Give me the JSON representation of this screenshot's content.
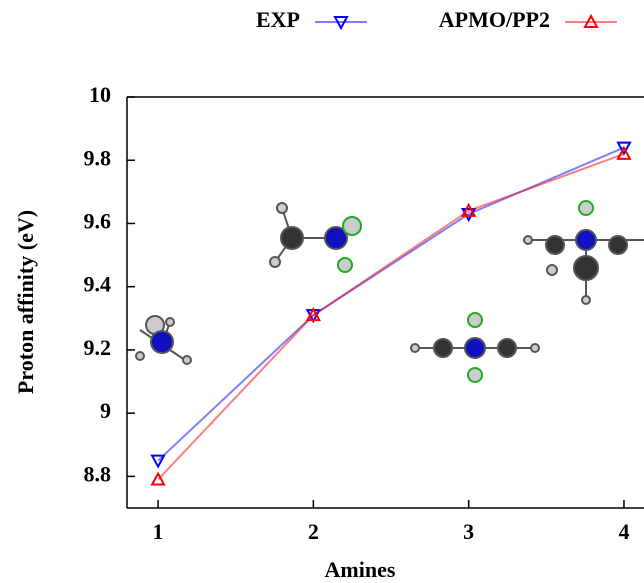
{
  "chart_data": {
    "type": "line",
    "xlabel": "Amines",
    "ylabel": "Proton affinity (eV)",
    "x": [
      1,
      2,
      3,
      4
    ],
    "series": [
      {
        "name": "EXP",
        "color": "#0000ff",
        "marker": "triangle-down",
        "values": [
          8.85,
          9.31,
          9.63,
          9.84
        ]
      },
      {
        "name": "APMO/PP2",
        "color": "#ff0000",
        "marker": "triangle-up",
        "values": [
          8.79,
          9.31,
          9.64,
          9.82
        ]
      }
    ],
    "xlim": [
      0.8,
      4.2
    ],
    "xticks": [
      1,
      2,
      3,
      4
    ],
    "ylim": [
      8.7,
      10
    ],
    "yticks": [
      8.8,
      9,
      9.2,
      9.4,
      9.6,
      9.8,
      10
    ]
  }
}
